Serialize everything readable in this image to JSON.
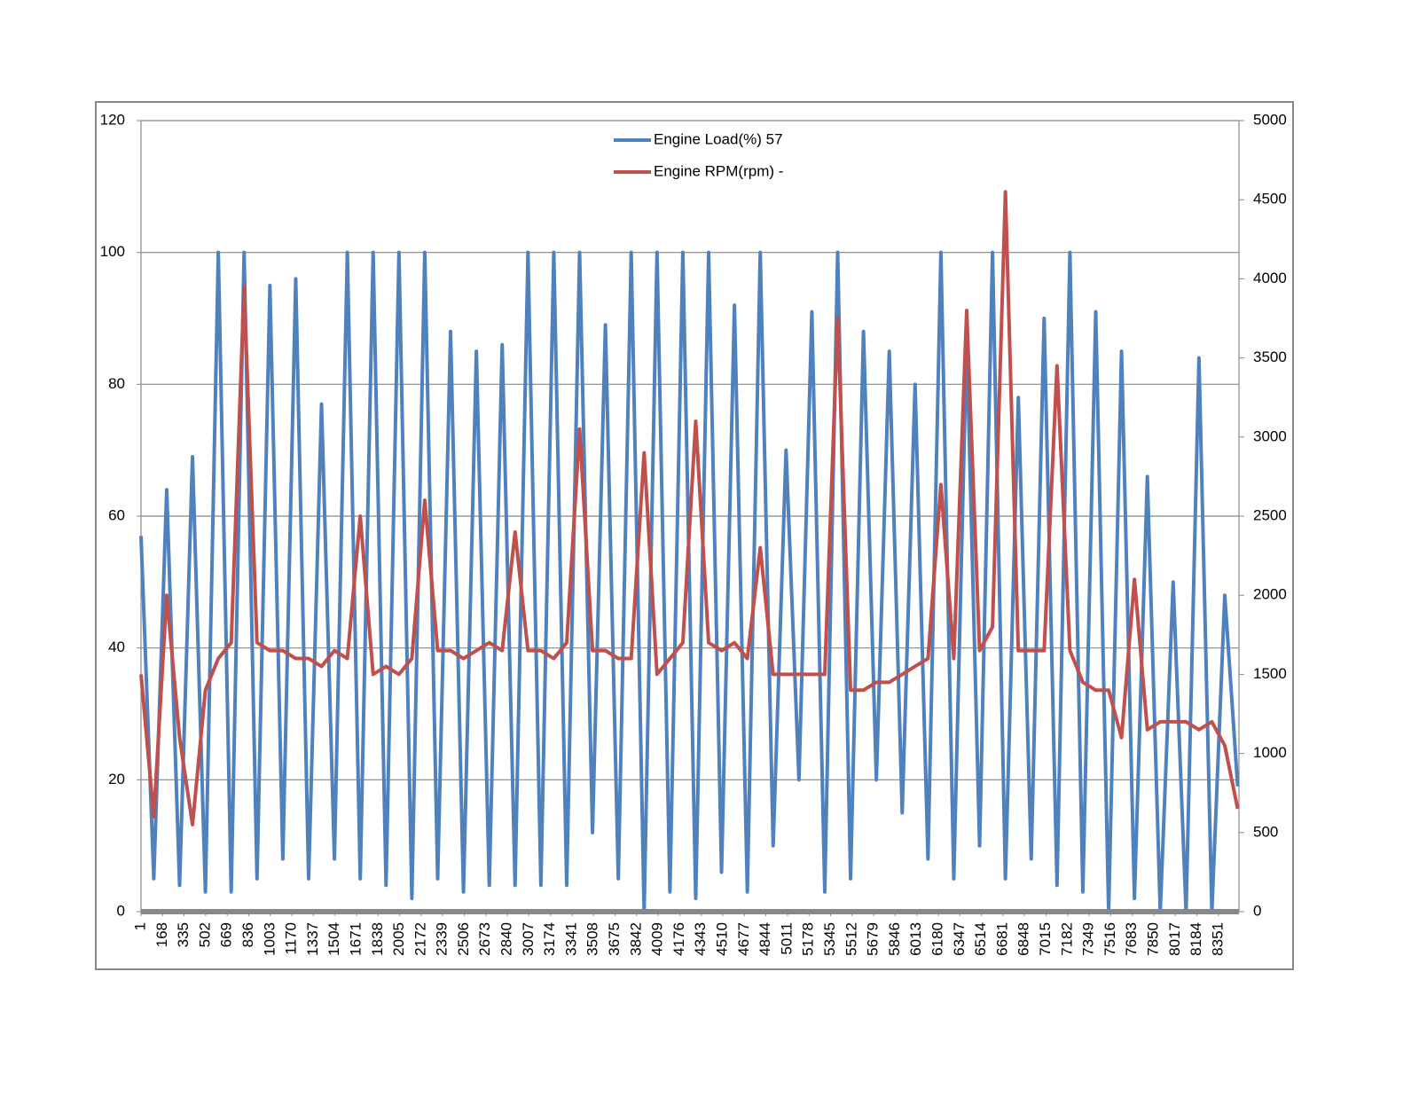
{
  "chart_data": {
    "type": "line",
    "legend": "top",
    "grid": true,
    "x": [
      1,
      100,
      200,
      300,
      400,
      500,
      600,
      700,
      800,
      900,
      1000,
      1100,
      1200,
      1300,
      1400,
      1500,
      1600,
      1700,
      1800,
      1900,
      2000,
      2100,
      2200,
      2300,
      2400,
      2500,
      2600,
      2700,
      2800,
      2900,
      3000,
      3100,
      3200,
      3300,
      3400,
      3500,
      3600,
      3700,
      3800,
      3900,
      4000,
      4100,
      4200,
      4300,
      4400,
      4500,
      4600,
      4700,
      4800,
      4900,
      5000,
      5100,
      5200,
      5300,
      5400,
      5500,
      5600,
      5700,
      5800,
      5900,
      6000,
      6100,
      6200,
      6300,
      6400,
      6500,
      6600,
      6700,
      6800,
      6900,
      7000,
      7100,
      7200,
      7300,
      7400,
      7500,
      7600,
      7700,
      7800,
      7900,
      8000,
      8100,
      8200,
      8300,
      8400,
      8500
    ],
    "xlim": [
      1,
      8510
    ],
    "xticks": [
      1,
      168,
      335,
      502,
      669,
      836,
      1003,
      1170,
      1337,
      1504,
      1671,
      1838,
      2005,
      2172,
      2339,
      2506,
      2673,
      2840,
      3007,
      3174,
      3341,
      3508,
      3675,
      3842,
      4009,
      4176,
      4343,
      4510,
      4677,
      4844,
      5011,
      5178,
      5345,
      5512,
      5679,
      5846,
      6013,
      6180,
      6347,
      6514,
      6681,
      6848,
      7015,
      7182,
      7349,
      7516,
      7683,
      7850,
      8017,
      8184,
      8351
    ],
    "ylim": [
      0,
      120
    ],
    "yticks": [
      0,
      20,
      40,
      60,
      80,
      100,
      120
    ],
    "y2lim": [
      0,
      5000
    ],
    "y2ticks": [
      0,
      500,
      1000,
      1500,
      2000,
      2500,
      3000,
      3500,
      4000,
      4500,
      5000
    ],
    "series": [
      {
        "name": "Engine Load(%) 57",
        "color": "#4f81bd",
        "values": [
          57,
          5,
          64,
          4,
          69,
          3,
          100,
          3,
          100,
          5,
          95,
          8,
          96,
          5,
          77,
          8,
          100,
          5,
          100,
          4,
          100,
          2,
          100,
          5,
          88,
          3,
          85,
          4,
          86,
          4,
          100,
          4,
          100,
          4,
          100,
          12,
          89,
          5,
          100,
          0,
          100,
          3,
          100,
          2,
          100,
          6,
          92,
          3,
          100,
          10,
          70,
          20,
          91,
          3,
          100,
          5,
          88,
          20,
          85,
          15,
          80,
          8,
          100,
          5,
          87,
          10,
          100,
          5,
          78,
          8,
          90,
          4,
          100,
          3,
          91,
          0,
          85,
          2,
          66,
          0,
          50,
          0,
          84,
          0,
          48,
          19
        ]
      },
      {
        "name": "Engine RPM(rpm) -",
        "color": "#c0504d",
        "axis": "y2",
        "values": [
          1500,
          600,
          2000,
          1100,
          550,
          1400,
          1600,
          1700,
          3950,
          1700,
          1650,
          1650,
          1600,
          1600,
          1550,
          1650,
          1600,
          2500,
          1500,
          1550,
          1500,
          1600,
          2600,
          1650,
          1650,
          1600,
          1650,
          1700,
          1650,
          2400,
          1650,
          1650,
          1600,
          1700,
          3050,
          1650,
          1650,
          1600,
          1600,
          2900,
          1500,
          1600,
          1700,
          3100,
          1700,
          1650,
          1700,
          1600,
          2300,
          1500,
          1500,
          1500,
          1500,
          1500,
          3750,
          1400,
          1400,
          1450,
          1450,
          1500,
          1550,
          1600,
          2700,
          1600,
          3800,
          1650,
          1800,
          4550,
          1650,
          1650,
          1650,
          3450,
          1650,
          1450,
          1400,
          1400,
          1100,
          2100,
          1150,
          1200,
          1200,
          1200,
          1150,
          1200,
          1050,
          650
        ]
      }
    ]
  }
}
